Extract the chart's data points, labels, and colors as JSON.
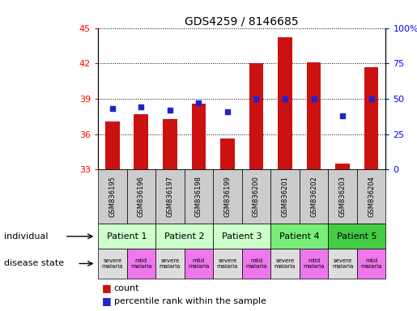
{
  "title": "GDS4259 / 8146685",
  "samples": [
    "GSM836195",
    "GSM836196",
    "GSM836197",
    "GSM836198",
    "GSM836199",
    "GSM836200",
    "GSM836201",
    "GSM836202",
    "GSM836203",
    "GSM836204"
  ],
  "counts": [
    37.1,
    37.7,
    37.3,
    38.6,
    35.6,
    42.0,
    44.2,
    42.1,
    33.5,
    41.7
  ],
  "percentiles": [
    43,
    44,
    42,
    47,
    41,
    50,
    50,
    50,
    38,
    50
  ],
  "ylim_left": [
    33,
    45
  ],
  "ylim_right": [
    0,
    100
  ],
  "yticks_left": [
    33,
    36,
    39,
    42,
    45
  ],
  "yticks_right": [
    0,
    25,
    50,
    75,
    100
  ],
  "ytick_labels_right": [
    "0",
    "25",
    "50",
    "75",
    "100%"
  ],
  "bar_color": "#cc1111",
  "dot_color": "#2222cc",
  "patients": [
    {
      "label": "Patient 1",
      "cols": [
        0,
        1
      ],
      "bg": "#ccffcc"
    },
    {
      "label": "Patient 2",
      "cols": [
        2,
        3
      ],
      "bg": "#ccffcc"
    },
    {
      "label": "Patient 3",
      "cols": [
        4,
        5
      ],
      "bg": "#ccffcc"
    },
    {
      "label": "Patient 4",
      "cols": [
        6,
        7
      ],
      "bg": "#77ee77"
    },
    {
      "label": "Patient 5",
      "cols": [
        8,
        9
      ],
      "bg": "#44cc44"
    }
  ],
  "disease_states": [
    {
      "label": "severe\nmalaria",
      "col": 0,
      "bg": "#dddddd"
    },
    {
      "label": "mild\nmalaria",
      "col": 1,
      "bg": "#ee77ee"
    },
    {
      "label": "severe\nmalaria",
      "col": 2,
      "bg": "#dddddd"
    },
    {
      "label": "mild\nmalaria",
      "col": 3,
      "bg": "#ee77ee"
    },
    {
      "label": "severe\nmalaria",
      "col": 4,
      "bg": "#dddddd"
    },
    {
      "label": "mild\nmalaria",
      "col": 5,
      "bg": "#ee77ee"
    },
    {
      "label": "severe\nmalaria",
      "col": 6,
      "bg": "#dddddd"
    },
    {
      "label": "mild\nmalaria",
      "col": 7,
      "bg": "#ee77ee"
    },
    {
      "label": "severe\nmalaria",
      "col": 8,
      "bg": "#dddddd"
    },
    {
      "label": "mild\nmalaria",
      "col": 9,
      "bg": "#ee77ee"
    }
  ],
  "sample_label_bg": "#cccccc",
  "legend_count_color": "#cc1111",
  "legend_dot_color": "#2222cc",
  "bar_width": 0.5
}
